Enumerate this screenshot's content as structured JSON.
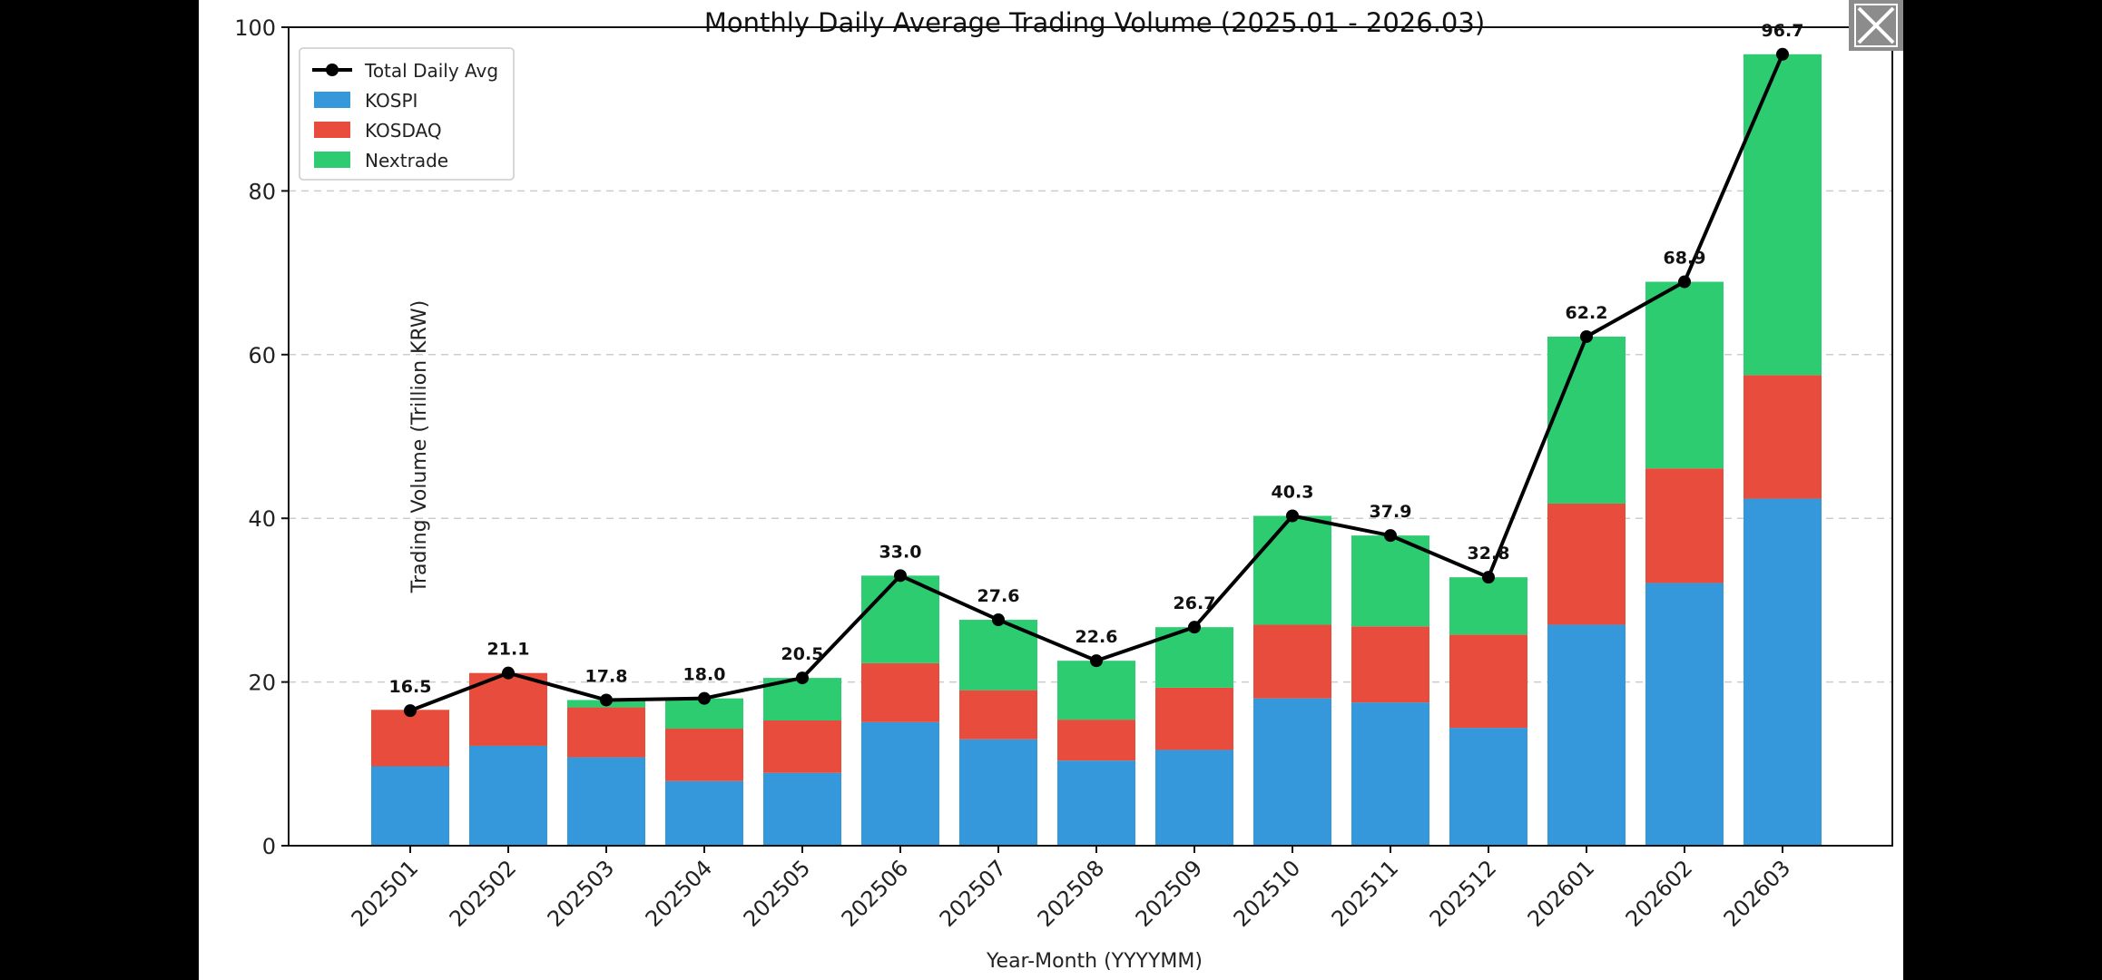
{
  "viewer": {
    "close_icon": "close-icon"
  },
  "chart_data": {
    "type": "bar",
    "stacked": true,
    "title": "Monthly Daily Average Trading Volume (2025.01 - 2026.03)",
    "xlabel": "Year-Month (YYYYMM)",
    "ylabel": "Trading Volume (Trillion KRW)",
    "ylim": [
      0,
      100
    ],
    "yticks": [
      0,
      20,
      40,
      60,
      80,
      100
    ],
    "grid": "horizontal dashed",
    "legend_position": "top-left",
    "categories": [
      "202501",
      "202502",
      "202503",
      "202504",
      "202505",
      "202506",
      "202507",
      "202508",
      "202509",
      "202510",
      "202511",
      "202512",
      "202601",
      "202602",
      "202603"
    ],
    "series": [
      {
        "name": "KOSPI",
        "kind": "bar",
        "color": "#3498db",
        "values": [
          9.7,
          12.2,
          10.8,
          7.9,
          8.9,
          15.1,
          13.0,
          10.4,
          11.7,
          18.0,
          17.5,
          14.4,
          27.0,
          32.1,
          42.4
        ]
      },
      {
        "name": "KOSDAQ",
        "kind": "bar",
        "color": "#e74c3c",
        "values": [
          6.9,
          8.9,
          6.1,
          6.4,
          6.4,
          7.2,
          6.0,
          5.0,
          7.6,
          9.0,
          9.3,
          11.4,
          14.8,
          14.0,
          15.1
        ]
      },
      {
        "name": "Nextrade",
        "kind": "bar",
        "color": "#2ecc71",
        "values": [
          0.0,
          0.0,
          0.9,
          3.7,
          5.2,
          10.7,
          8.6,
          7.2,
          7.4,
          13.3,
          11.1,
          7.0,
          20.4,
          22.8,
          39.2
        ]
      },
      {
        "name": "Total Daily Avg",
        "kind": "line",
        "color": "#000000",
        "values": [
          16.5,
          21.1,
          17.8,
          18.0,
          20.5,
          33.0,
          27.6,
          22.6,
          26.7,
          40.3,
          37.9,
          32.8,
          62.2,
          68.9,
          96.7
        ]
      }
    ],
    "data_labels": [
      "16.5",
      "21.1",
      "17.8",
      "18.0",
      "20.5",
      "33.0",
      "27.6",
      "22.6",
      "26.7",
      "40.3",
      "37.9",
      "32.8",
      "62.2",
      "68.9",
      "96.7"
    ]
  }
}
